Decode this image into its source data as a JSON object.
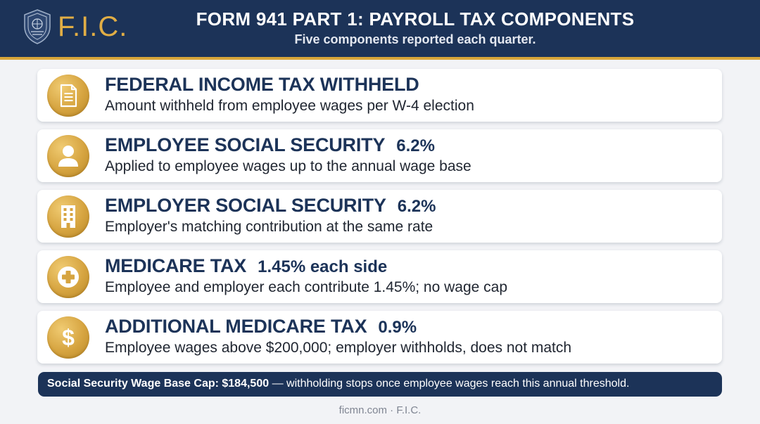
{
  "header": {
    "logo_text": "F.I.C.",
    "title": "FORM 941 PART 1: PAYROLL TAX COMPONENTS",
    "subtitle": "Five components reported each quarter."
  },
  "colors": {
    "navy": "#1c3358",
    "gold": "#d8a63a",
    "background": "#f2f3f6"
  },
  "components": [
    {
      "icon": "document-icon",
      "title": "FEDERAL INCOME TAX WITHHELD",
      "rate": "",
      "description": "Amount withheld from employee wages per W-4 election"
    },
    {
      "icon": "person-icon",
      "title": "EMPLOYEE SOCIAL SECURITY",
      "rate": "6.2%",
      "description": "Applied to employee wages up to the annual wage base"
    },
    {
      "icon": "building-icon",
      "title": "EMPLOYER SOCIAL SECURITY",
      "rate": "6.2%",
      "description": "Employer's matching contribution at the same rate"
    },
    {
      "icon": "medical-plus-icon",
      "title": "MEDICARE TAX",
      "rate": "1.45% each side",
      "description": "Employee and employer each contribute 1.45%; no wage cap"
    },
    {
      "icon": "dollar-icon",
      "title": "ADDITIONAL MEDICARE TAX",
      "rate": "0.9%",
      "description": "Employee wages above $200,000; employer withholds, does not match"
    }
  ],
  "note": {
    "bold": "Social Security Wage Base Cap: $184,500",
    "text": " — withholding stops once employee wages reach this annual threshold."
  },
  "footer": "ficmn.com · F.I.C."
}
